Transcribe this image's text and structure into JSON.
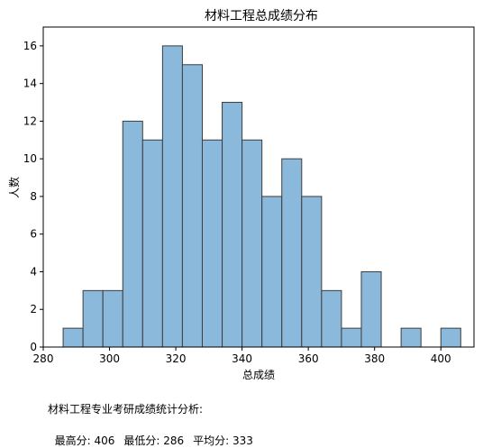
{
  "chart_data": {
    "type": "bar",
    "title": "材料工程总成绩分布",
    "xlabel": "总成绩",
    "ylabel": "人数",
    "xlim": [
      280,
      410
    ],
    "ylim": [
      0,
      17
    ],
    "x_ticks": [
      280,
      300,
      320,
      340,
      360,
      380,
      400
    ],
    "y_ticks": [
      0,
      2,
      4,
      6,
      8,
      10,
      12,
      14,
      16
    ],
    "grid": false,
    "bar_color": "#8ab9db",
    "edge_color": "#3d3d3d",
    "bins": [
      {
        "x0": 286,
        "x1": 292,
        "count": 1
      },
      {
        "x0": 292,
        "x1": 298,
        "count": 3
      },
      {
        "x0": 298,
        "x1": 304,
        "count": 3
      },
      {
        "x0": 304,
        "x1": 310,
        "count": 12
      },
      {
        "x0": 310,
        "x1": 316,
        "count": 11
      },
      {
        "x0": 316,
        "x1": 322,
        "count": 16
      },
      {
        "x0": 322,
        "x1": 328,
        "count": 15
      },
      {
        "x0": 328,
        "x1": 334,
        "count": 11
      },
      {
        "x0": 334,
        "x1": 340,
        "count": 13
      },
      {
        "x0": 340,
        "x1": 346,
        "count": 11
      },
      {
        "x0": 346,
        "x1": 352,
        "count": 8
      },
      {
        "x0": 352,
        "x1": 358,
        "count": 10
      },
      {
        "x0": 358,
        "x1": 364,
        "count": 8
      },
      {
        "x0": 364,
        "x1": 370,
        "count": 3
      },
      {
        "x0": 370,
        "x1": 376,
        "count": 1
      },
      {
        "x0": 376,
        "x1": 382,
        "count": 4
      },
      {
        "x0": 382,
        "x1": 388,
        "count": 0
      },
      {
        "x0": 388,
        "x1": 394,
        "count": 1
      },
      {
        "x0": 394,
        "x1": 400,
        "count": 0
      },
      {
        "x0": 400,
        "x1": 406,
        "count": 1
      }
    ]
  },
  "stats": {
    "heading": "材料工程专业考研成绩统计分析:",
    "max_label": "最高分: 406",
    "min_label": "最低分: 286",
    "mean_label": "平均分: 333"
  }
}
